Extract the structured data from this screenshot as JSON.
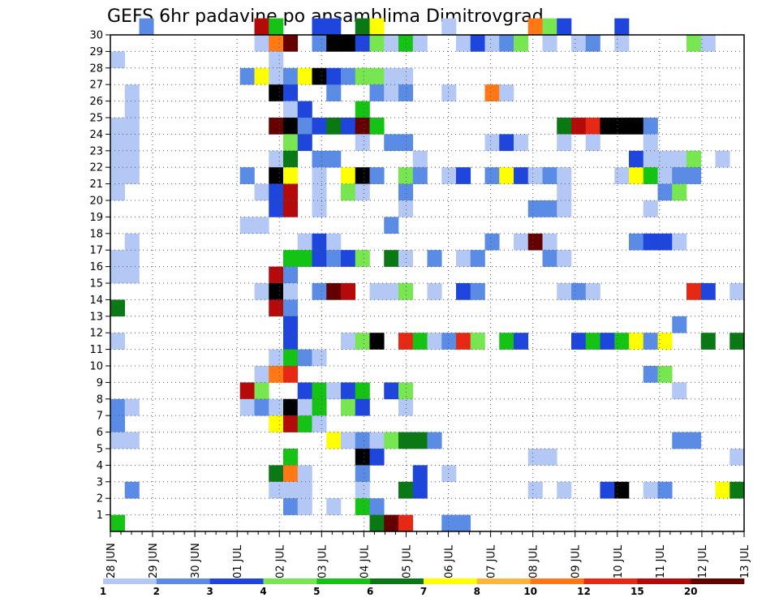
{
  "chart_data": {
    "type": "heatmap",
    "title": "GEFS 6hr padavine po ansamblima Dimitrovgrad",
    "x_tick_labels": [
      "28 JUN",
      "29 JUN",
      "30 JUN",
      "01 JUL",
      "02 JUL",
      "03 JUL",
      "04 JUL",
      "05 JUL",
      "06 JUL",
      "07 JUL",
      "08 JUL",
      "09 JUL",
      "10 JUL",
      "11 JUL",
      "12 JUL",
      "13 JUL"
    ],
    "y_tick_labels": [
      "1",
      "2",
      "3",
      "4",
      "5",
      "6",
      "7",
      "8",
      "9",
      "10",
      "11",
      "12",
      "13",
      "14",
      "15",
      "16",
      "17",
      "18",
      "19",
      "20",
      "21",
      "22",
      "23",
      "24",
      "25",
      "26",
      "27",
      "28",
      "29",
      "30"
    ],
    "grid": true,
    "legend": {
      "placement": "bottom",
      "labels": [
        "1",
        "2",
        "3",
        "4",
        "5",
        "6",
        "7",
        "8",
        "10",
        "12",
        "15",
        "20"
      ],
      "colors": [
        "#b4c8f5",
        "#5a8ce6",
        "#1e46dc",
        "#78e650",
        "#14c314",
        "#0a7814",
        "#ffff00",
        "#ffb43c",
        "#ff7814",
        "#e62814",
        "#b40a0a",
        "#640000"
      ]
    },
    "cells": [
      [
        30,
        2,
        2
      ],
      [
        30,
        10,
        11
      ],
      [
        30,
        11,
        5
      ],
      [
        30,
        14,
        3
      ],
      [
        30,
        15,
        3
      ],
      [
        30,
        17,
        6
      ],
      [
        30,
        18,
        7
      ],
      [
        30,
        23,
        1
      ],
      [
        30,
        29,
        9
      ],
      [
        30,
        30,
        4
      ],
      [
        30,
        31,
        3
      ],
      [
        30,
        35,
        3
      ],
      [
        29,
        10,
        1
      ],
      [
        29,
        11,
        9
      ],
      [
        29,
        12,
        12
      ],
      [
        29,
        14,
        2
      ],
      [
        29,
        15,
        14
      ],
      [
        29,
        16,
        13
      ],
      [
        29,
        17,
        3
      ],
      [
        29,
        18,
        4
      ],
      [
        29,
        19,
        1
      ],
      [
        29,
        20,
        5
      ],
      [
        29,
        21,
        1
      ],
      [
        29,
        24,
        1
      ],
      [
        29,
        25,
        3
      ],
      [
        29,
        26,
        1
      ],
      [
        29,
        27,
        2
      ],
      [
        29,
        28,
        4
      ],
      [
        29,
        30,
        1
      ],
      [
        29,
        32,
        1
      ],
      [
        29,
        33,
        2
      ],
      [
        29,
        35,
        1
      ],
      [
        29,
        40,
        4
      ],
      [
        29,
        41,
        1
      ],
      [
        28,
        0,
        1
      ],
      [
        28,
        11,
        1
      ],
      [
        27,
        9,
        2
      ],
      [
        27,
        10,
        7
      ],
      [
        27,
        11,
        1
      ],
      [
        27,
        12,
        2
      ],
      [
        27,
        13,
        7
      ],
      [
        27,
        14,
        13
      ],
      [
        27,
        15,
        3
      ],
      [
        27,
        16,
        2
      ],
      [
        27,
        17,
        4
      ],
      [
        27,
        18,
        4
      ],
      [
        27,
        19,
        1
      ],
      [
        27,
        20,
        1
      ],
      [
        26,
        1,
        1
      ],
      [
        26,
        11,
        13
      ],
      [
        26,
        12,
        3
      ],
      [
        26,
        15,
        2
      ],
      [
        26,
        18,
        2
      ],
      [
        26,
        19,
        1
      ],
      [
        26,
        20,
        2
      ],
      [
        26,
        23,
        1
      ],
      [
        26,
        26,
        9
      ],
      [
        26,
        27,
        1
      ],
      [
        25,
        1,
        1
      ],
      [
        25,
        12,
        1
      ],
      [
        25,
        13,
        3
      ],
      [
        25,
        17,
        5
      ],
      [
        24,
        0,
        1
      ],
      [
        24,
        1,
        1
      ],
      [
        24,
        11,
        12
      ],
      [
        24,
        12,
        13
      ],
      [
        24,
        13,
        2
      ],
      [
        24,
        14,
        3
      ],
      [
        24,
        15,
        6
      ],
      [
        24,
        16,
        3
      ],
      [
        24,
        17,
        12
      ],
      [
        24,
        18,
        5
      ],
      [
        24,
        31,
        6
      ],
      [
        24,
        32,
        11
      ],
      [
        24,
        33,
        10
      ],
      [
        24,
        34,
        13
      ],
      [
        24,
        35,
        13
      ],
      [
        24,
        36,
        13
      ],
      [
        24,
        37,
        2
      ],
      [
        23,
        0,
        1
      ],
      [
        23,
        1,
        1
      ],
      [
        23,
        12,
        4
      ],
      [
        23,
        13,
        3
      ],
      [
        23,
        17,
        1
      ],
      [
        23,
        19,
        2
      ],
      [
        23,
        20,
        2
      ],
      [
        23,
        26,
        1
      ],
      [
        23,
        27,
        3
      ],
      [
        23,
        28,
        1
      ],
      [
        23,
        31,
        1
      ],
      [
        23,
        33,
        1
      ],
      [
        23,
        37,
        1
      ],
      [
        22,
        0,
        1
      ],
      [
        22,
        1,
        1
      ],
      [
        22,
        11,
        1
      ],
      [
        22,
        12,
        6
      ],
      [
        22,
        14,
        2
      ],
      [
        22,
        15,
        2
      ],
      [
        22,
        21,
        1
      ],
      [
        22,
        36,
        3
      ],
      [
        22,
        37,
        1
      ],
      [
        22,
        38,
        1
      ],
      [
        22,
        39,
        1
      ],
      [
        22,
        40,
        4
      ],
      [
        22,
        42,
        1
      ],
      [
        21,
        0,
        1
      ],
      [
        21,
        1,
        1
      ],
      [
        21,
        9,
        2
      ],
      [
        21,
        11,
        13
      ],
      [
        21,
        12,
        7
      ],
      [
        21,
        14,
        1
      ],
      [
        21,
        16,
        7
      ],
      [
        21,
        17,
        13
      ],
      [
        21,
        18,
        2
      ],
      [
        21,
        20,
        4
      ],
      [
        21,
        21,
        2
      ],
      [
        21,
        23,
        1
      ],
      [
        21,
        24,
        3
      ],
      [
        21,
        26,
        2
      ],
      [
        21,
        27,
        7
      ],
      [
        21,
        28,
        3
      ],
      [
        21,
        29,
        1
      ],
      [
        21,
        30,
        2
      ],
      [
        21,
        31,
        1
      ],
      [
        21,
        35,
        1
      ],
      [
        21,
        36,
        7
      ],
      [
        21,
        37,
        5
      ],
      [
        21,
        38,
        1
      ],
      [
        21,
        39,
        2
      ],
      [
        21,
        40,
        2
      ],
      [
        20,
        0,
        1
      ],
      [
        20,
        10,
        1
      ],
      [
        20,
        11,
        3
      ],
      [
        20,
        12,
        11
      ],
      [
        20,
        14,
        1
      ],
      [
        20,
        16,
        4
      ],
      [
        20,
        17,
        1
      ],
      [
        20,
        20,
        2
      ],
      [
        20,
        31,
        1
      ],
      [
        20,
        38,
        2
      ],
      [
        20,
        39,
        4
      ],
      [
        19,
        11,
        3
      ],
      [
        19,
        12,
        11
      ],
      [
        19,
        14,
        1
      ],
      [
        19,
        20,
        1
      ],
      [
        19,
        29,
        2
      ],
      [
        19,
        30,
        2
      ],
      [
        19,
        31,
        1
      ],
      [
        19,
        37,
        1
      ],
      [
        18,
        9,
        1
      ],
      [
        18,
        10,
        1
      ],
      [
        18,
        19,
        2
      ],
      [
        17,
        1,
        1
      ],
      [
        17,
        13,
        1
      ],
      [
        17,
        14,
        3
      ],
      [
        17,
        15,
        1
      ],
      [
        17,
        26,
        2
      ],
      [
        17,
        28,
        1
      ],
      [
        17,
        29,
        12
      ],
      [
        17,
        30,
        1
      ],
      [
        17,
        36,
        2
      ],
      [
        17,
        37,
        3
      ],
      [
        17,
        38,
        3
      ],
      [
        17,
        39,
        1
      ],
      [
        16,
        0,
        1
      ],
      [
        16,
        1,
        1
      ],
      [
        16,
        12,
        5
      ],
      [
        16,
        13,
        5
      ],
      [
        16,
        14,
        3
      ],
      [
        16,
        15,
        2
      ],
      [
        16,
        16,
        3
      ],
      [
        16,
        17,
        4
      ],
      [
        16,
        19,
        6
      ],
      [
        16,
        20,
        1
      ],
      [
        16,
        22,
        2
      ],
      [
        16,
        24,
        1
      ],
      [
        16,
        25,
        2
      ],
      [
        16,
        30,
        2
      ],
      [
        16,
        31,
        1
      ],
      [
        15,
        0,
        1
      ],
      [
        15,
        1,
        1
      ],
      [
        15,
        11,
        11
      ],
      [
        15,
        12,
        2
      ],
      [
        14,
        31,
        1
      ],
      [
        14,
        32,
        2
      ],
      [
        14,
        33,
        1
      ],
      [
        14,
        10,
        1
      ],
      [
        14,
        11,
        13
      ],
      [
        14,
        12,
        1
      ],
      [
        14,
        14,
        2
      ],
      [
        14,
        15,
        12
      ],
      [
        14,
        16,
        11
      ],
      [
        14,
        18,
        1
      ],
      [
        14,
        19,
        1
      ],
      [
        14,
        20,
        4
      ],
      [
        14,
        22,
        1
      ],
      [
        14,
        24,
        3
      ],
      [
        14,
        25,
        2
      ],
      [
        14,
        40,
        10
      ],
      [
        14,
        41,
        3
      ],
      [
        14,
        43,
        1
      ],
      [
        13,
        0,
        6
      ],
      [
        13,
        11,
        11
      ],
      [
        13,
        12,
        2
      ],
      [
        12,
        12,
        3
      ],
      [
        12,
        39,
        2
      ],
      [
        11,
        0,
        1
      ],
      [
        11,
        12,
        3
      ],
      [
        11,
        16,
        1
      ],
      [
        11,
        17,
        4
      ],
      [
        11,
        18,
        13
      ],
      [
        11,
        20,
        10
      ],
      [
        11,
        21,
        5
      ],
      [
        11,
        22,
        1
      ],
      [
        11,
        23,
        2
      ],
      [
        11,
        24,
        10
      ],
      [
        11,
        25,
        4
      ],
      [
        11,
        27,
        5
      ],
      [
        11,
        28,
        3
      ],
      [
        11,
        32,
        3
      ],
      [
        11,
        33,
        5
      ],
      [
        11,
        34,
        3
      ],
      [
        11,
        35,
        5
      ],
      [
        11,
        36,
        7
      ],
      [
        11,
        37,
        2
      ],
      [
        11,
        38,
        7
      ],
      [
        11,
        41,
        6
      ],
      [
        11,
        43,
        6
      ],
      [
        10,
        11,
        1
      ],
      [
        10,
        12,
        5
      ],
      [
        10,
        13,
        2
      ],
      [
        10,
        14,
        1
      ],
      [
        9,
        10,
        1
      ],
      [
        9,
        11,
        9
      ],
      [
        9,
        12,
        10
      ],
      [
        9,
        37,
        2
      ],
      [
        9,
        38,
        4
      ],
      [
        8,
        9,
        11
      ],
      [
        8,
        10,
        4
      ],
      [
        8,
        13,
        3
      ],
      [
        8,
        14,
        5
      ],
      [
        8,
        15,
        1
      ],
      [
        8,
        16,
        3
      ],
      [
        8,
        17,
        5
      ],
      [
        8,
        19,
        3
      ],
      [
        8,
        20,
        4
      ],
      [
        8,
        39,
        1
      ],
      [
        7,
        0,
        2
      ],
      [
        7,
        1,
        1
      ],
      [
        7,
        9,
        1
      ],
      [
        7,
        10,
        2
      ],
      [
        7,
        11,
        1
      ],
      [
        7,
        12,
        13
      ],
      [
        7,
        13,
        1
      ],
      [
        7,
        14,
        5
      ],
      [
        7,
        16,
        4
      ],
      [
        7,
        17,
        3
      ],
      [
        7,
        20,
        1
      ],
      [
        6,
        0,
        2
      ],
      [
        6,
        11,
        7
      ],
      [
        6,
        12,
        11
      ],
      [
        6,
        13,
        5
      ],
      [
        6,
        14,
        1
      ],
      [
        5,
        0,
        1
      ],
      [
        5,
        1,
        1
      ],
      [
        5,
        15,
        7
      ],
      [
        5,
        16,
        1
      ],
      [
        5,
        17,
        2
      ],
      [
        5,
        18,
        1
      ],
      [
        5,
        19,
        4
      ],
      [
        5,
        20,
        6
      ],
      [
        5,
        21,
        6
      ],
      [
        5,
        22,
        2
      ],
      [
        5,
        39,
        2
      ],
      [
        5,
        40,
        2
      ],
      [
        4,
        12,
        5
      ],
      [
        4,
        17,
        13
      ],
      [
        4,
        18,
        3
      ],
      [
        4,
        29,
        1
      ],
      [
        4,
        30,
        1
      ],
      [
        4,
        43,
        1
      ],
      [
        3,
        11,
        6
      ],
      [
        3,
        12,
        9
      ],
      [
        3,
        13,
        1
      ],
      [
        3,
        17,
        2
      ],
      [
        3,
        21,
        3
      ],
      [
        3,
        23,
        1
      ],
      [
        2,
        1,
        2
      ],
      [
        2,
        11,
        1
      ],
      [
        2,
        12,
        1
      ],
      [
        2,
        13,
        1
      ],
      [
        2,
        17,
        1
      ],
      [
        2,
        20,
        6
      ],
      [
        2,
        21,
        3
      ],
      [
        2,
        29,
        1
      ],
      [
        2,
        31,
        1
      ],
      [
        2,
        34,
        3
      ],
      [
        2,
        35,
        13
      ],
      [
        2,
        37,
        1
      ],
      [
        2,
        38,
        2
      ],
      [
        2,
        42,
        7
      ],
      [
        2,
        43,
        6
      ],
      [
        1,
        12,
        2
      ],
      [
        1,
        13,
        1
      ],
      [
        1,
        15,
        1
      ],
      [
        1,
        17,
        5
      ],
      [
        1,
        18,
        2
      ],
      [
        0,
        0,
        5
      ],
      [
        0,
        18,
        6
      ],
      [
        0,
        19,
        12
      ],
      [
        0,
        20,
        10
      ],
      [
        0,
        23,
        2
      ],
      [
        0,
        24,
        2
      ]
    ]
  }
}
